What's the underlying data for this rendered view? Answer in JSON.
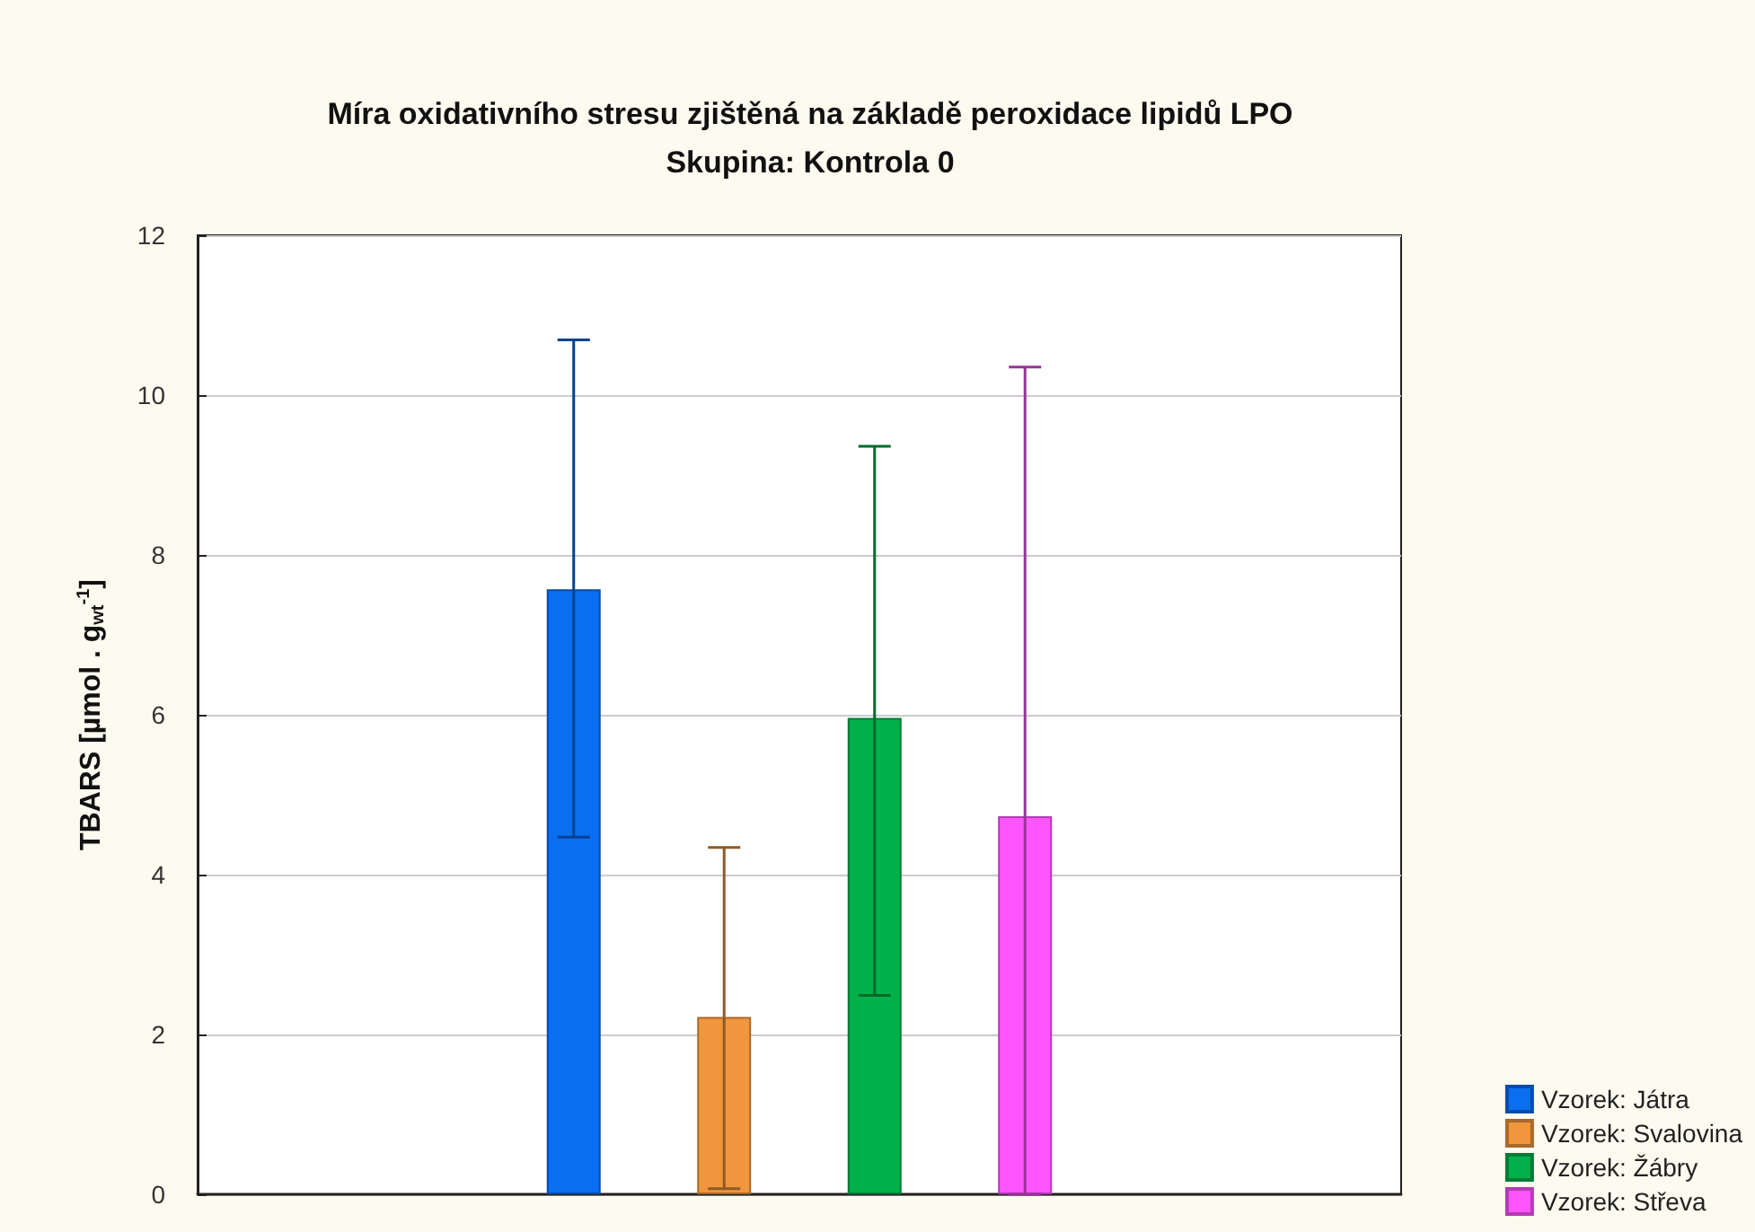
{
  "chart_data": {
    "type": "bar",
    "title": "Míra oxidativního stresu zjištěná na základě peroxidace lipidů LPO",
    "subtitle": "Skupina: Kontrola 0",
    "ylabel": "TBARS [µmol . g$_{wt}$$^{-1}$]",
    "categories": [
      null,
      null,
      null,
      null,
      null,
      null,
      null,
      null
    ],
    "series": [
      {
        "name": "Vzorek: Játra",
        "color": "#0a6ef0",
        "values": [
          null,
          null,
          7.57,
          null,
          null,
          null,
          null,
          null
        ],
        "errors": [
          null,
          null,
          [
            4.47,
            10.69
          ],
          null,
          null,
          null,
          null,
          null
        ]
      },
      {
        "name": "Vzorek: Svalovina",
        "color": "#f0963c",
        "values": [
          null,
          null,
          null,
          2.22,
          null,
          null,
          null,
          null
        ],
        "errors": [
          null,
          null,
          null,
          [
            0.07,
            4.34
          ],
          null,
          null,
          null,
          null
        ]
      },
      {
        "name": "Vzorek: Žábry",
        "color": "#00b04a",
        "values": [
          null,
          null,
          null,
          null,
          5.96,
          null,
          null,
          null
        ],
        "errors": [
          null,
          null,
          null,
          null,
          [
            2.49,
            9.36
          ],
          null,
          null,
          null
        ]
      },
      {
        "name": "Vzorek: Střeva",
        "color": "#ff55ff",
        "values": [
          null,
          null,
          null,
          null,
          null,
          4.73,
          null,
          null
        ],
        "errors": [
          null,
          null,
          null,
          null,
          null,
          [
            0,
            10.35
          ],
          null,
          null
        ]
      }
    ],
    "ylim": [
      0,
      12
    ],
    "yticks": [
      0,
      2,
      4,
      6,
      8,
      10,
      12
    ],
    "grid": "y",
    "legend": "bottom right",
    "tick_labels": "y"
  }
}
